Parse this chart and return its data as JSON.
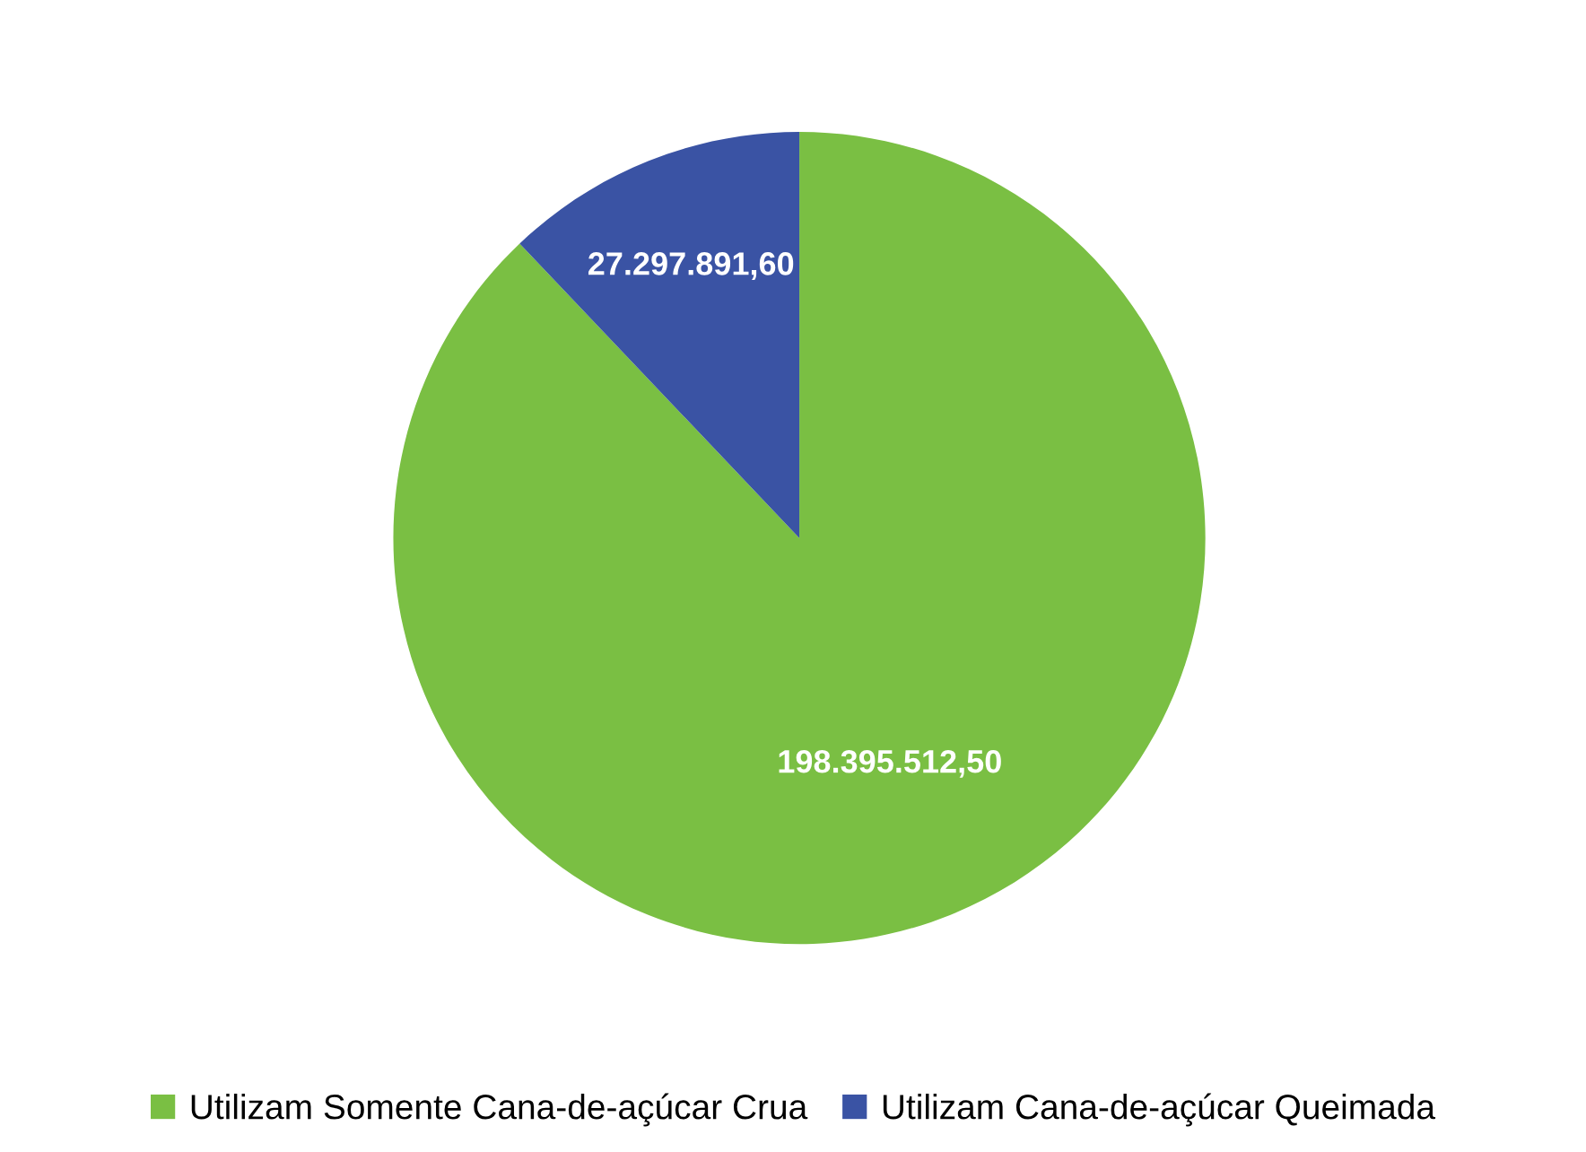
{
  "chart_data": {
    "type": "pie",
    "categories": [
      "Utilizam Somente Cana-de-açúcar Crua",
      "Utilizam Cana-de-açúcar Queimada"
    ],
    "values": [
      198395512.5,
      27297891.6
    ],
    "value_labels": [
      "198.395.512,50",
      "27.297.891,60"
    ],
    "colors": [
      "#7abf43",
      "#3a53a4"
    ],
    "legend": "bottom"
  }
}
